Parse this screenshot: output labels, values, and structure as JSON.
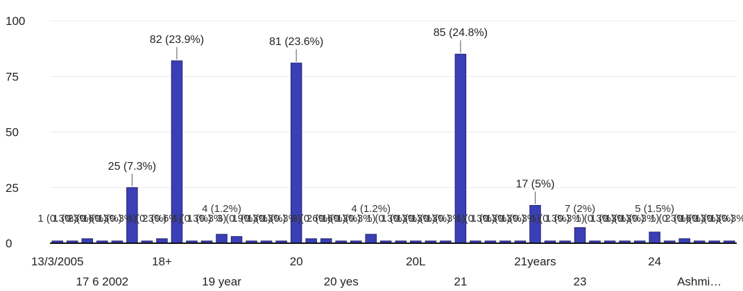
{
  "chart_data": {
    "type": "bar",
    "title": "",
    "xlabel": "",
    "ylabel": "",
    "ylim": [
      0,
      100
    ],
    "yticks": [
      0,
      25,
      50,
      75,
      100
    ],
    "grid": true,
    "colors": {
      "bar": "#3b3fb6",
      "bar_edge": "#1f2170",
      "axis": "#111111"
    },
    "x_tick_labels": [
      {
        "index": 0,
        "label": "13/3/2005",
        "row": 1
      },
      {
        "index": 3,
        "label": "17 6 2002",
        "row": 2
      },
      {
        "index": 7,
        "label": "18+",
        "row": 1
      },
      {
        "index": 11,
        "label": "19 year",
        "row": 2
      },
      {
        "index": 16,
        "label": "20",
        "row": 1
      },
      {
        "index": 19,
        "label": "20 yes",
        "row": 2
      },
      {
        "index": 24,
        "label": "20L",
        "row": 1
      },
      {
        "index": 27,
        "label": "21",
        "row": 2
      },
      {
        "index": 32,
        "label": "21years",
        "row": 1
      },
      {
        "index": 35,
        "label": "23",
        "row": 2
      },
      {
        "index": 40,
        "label": "24",
        "row": 1
      },
      {
        "index": 43,
        "label": "Ashmi…",
        "row": 2
      }
    ],
    "bars": [
      {
        "value": 1,
        "label": "1 (0.3%)"
      },
      {
        "value": 1,
        "label": "1 (0.3%)"
      },
      {
        "value": 2,
        "label": "2 (0.6%)"
      },
      {
        "value": 1,
        "label": "1 (0.3%)"
      },
      {
        "value": 1,
        "label": "1 (0.3%)"
      },
      {
        "value": 25,
        "label": "25 (7.3%)"
      },
      {
        "value": 1,
        "label": "1 (0.3%)"
      },
      {
        "value": 2,
        "label": "2 (0.6%)"
      },
      {
        "value": 82,
        "label": "82 (23.9%)"
      },
      {
        "value": 1,
        "label": "1 (0.3%)"
      },
      {
        "value": 1,
        "label": "1 (0.3%)"
      },
      {
        "value": 4,
        "label": "4 (1.2%)"
      },
      {
        "value": 3,
        "label": "3 (0.9%)"
      },
      {
        "value": 1,
        "label": "1 (0.3%)"
      },
      {
        "value": 1,
        "label": "1 (0.3%)"
      },
      {
        "value": 1,
        "label": "1 (0.3%)"
      },
      {
        "value": 81,
        "label": "81 (23.6%)"
      },
      {
        "value": 2,
        "label": "2 (0.6%)"
      },
      {
        "value": 2,
        "label": "2 (0.6%)"
      },
      {
        "value": 1,
        "label": "1 (0.3%)"
      },
      {
        "value": 1,
        "label": "1 (0.3%)"
      },
      {
        "value": 4,
        "label": "4 (1.2%)"
      },
      {
        "value": 1,
        "label": "1 (0.3%)"
      },
      {
        "value": 1,
        "label": "1 (0.3%)"
      },
      {
        "value": 1,
        "label": "1 (0.3%)"
      },
      {
        "value": 1,
        "label": "1 (0.3%)"
      },
      {
        "value": 1,
        "label": "1 (0.3%)"
      },
      {
        "value": 85,
        "label": "85 (24.8%)"
      },
      {
        "value": 1,
        "label": "1 (0.3%)"
      },
      {
        "value": 1,
        "label": "1 (0.3%)"
      },
      {
        "value": 1,
        "label": "1 (0.3%)"
      },
      {
        "value": 1,
        "label": "1 (0.3%)"
      },
      {
        "value": 17,
        "label": "17 (5%)"
      },
      {
        "value": 1,
        "label": "1 (0.3%)"
      },
      {
        "value": 1,
        "label": "1 (0.3%)"
      },
      {
        "value": 7,
        "label": "7 (2%)"
      },
      {
        "value": 1,
        "label": "1 (0.3%)"
      },
      {
        "value": 1,
        "label": "1 (0.3%)"
      },
      {
        "value": 1,
        "label": "1 (0.3%)"
      },
      {
        "value": 1,
        "label": "1 (0.3%)"
      },
      {
        "value": 5,
        "label": "5 (1.5%)"
      },
      {
        "value": 1,
        "label": "1 (0.3%)"
      },
      {
        "value": 2,
        "label": "2 (0.6%)"
      },
      {
        "value": 1,
        "label": "1 (0.3%)"
      },
      {
        "value": 1,
        "label": "1 (0.3%)"
      },
      {
        "value": 1,
        "label": "1 (0.3%)"
      }
    ]
  }
}
